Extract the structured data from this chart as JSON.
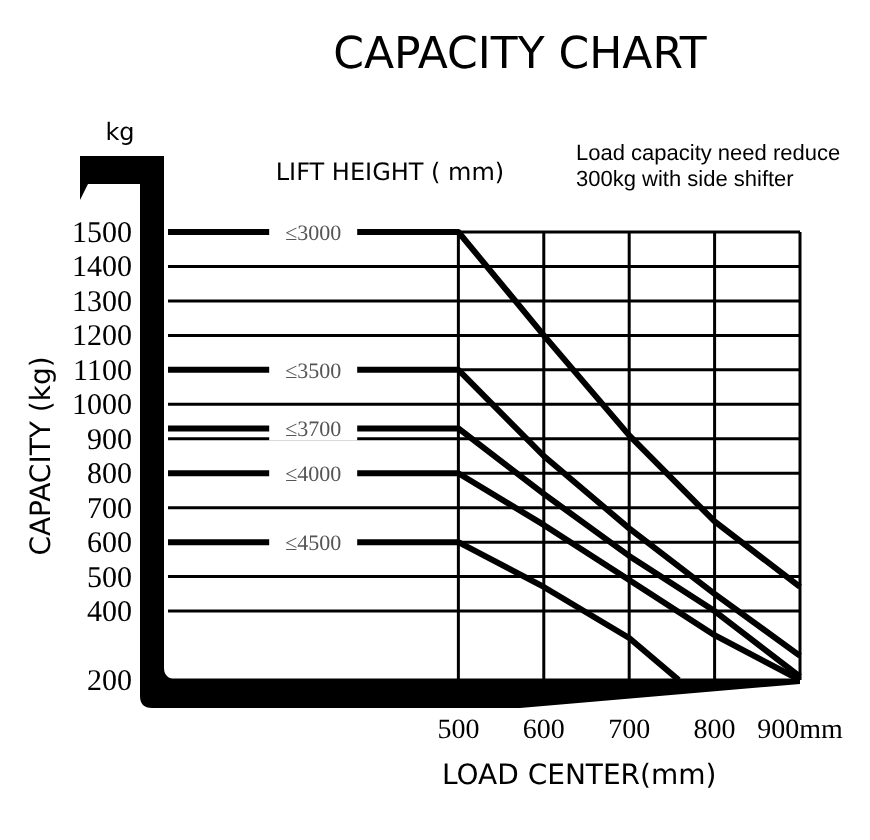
{
  "chart_data": {
    "type": "line",
    "title": "CAPACITY CHART",
    "xlabel": "LOAD CENTER(mm)",
    "ylabel": "CAPACITY (kg)",
    "legend_title": "LIFT HEIGHT ( mm)",
    "annotations": [
      "kg",
      "Load capacity need reduce\n300kg with side shifter"
    ],
    "xlim": [
      160,
      900
    ],
    "xticks": [
      500,
      600,
      700,
      800,
      {
        "value": 900,
        "label": "900mm"
      }
    ],
    "ylim": [
      200,
      1500
    ],
    "yticks": [
      200,
      400,
      500,
      600,
      700,
      800,
      900,
      1000,
      1100,
      1200,
      1300,
      1400,
      1500
    ],
    "grid": true,
    "marker": "none",
    "line_style": "solid",
    "series": [
      {
        "name": "≤3000",
        "color": "#000000",
        "x": [
          160,
          500,
          600,
          700,
          800,
          900
        ],
        "values": [
          1500,
          1500,
          1200,
          910,
          660,
          470
        ]
      },
      {
        "name": "≤3500",
        "color": "#000000",
        "x": [
          160,
          500,
          600,
          700,
          800,
          900
        ],
        "values": [
          1100,
          1100,
          850,
          640,
          450,
          270
        ]
      },
      {
        "name": "≤3700",
        "color": "#000000",
        "x": [
          160,
          500,
          600,
          700,
          800,
          900
        ],
        "values": [
          930,
          930,
          740,
          560,
          400,
          210
        ]
      },
      {
        "name": "≤4000",
        "color": "#000000",
        "x": [
          160,
          500,
          600,
          700,
          800,
          900
        ],
        "values": [
          800,
          800,
          650,
          490,
          330,
          200
        ]
      },
      {
        "name": "≤4500",
        "color": "#000000",
        "x": [
          160,
          500,
          600,
          700,
          758
        ],
        "values": [
          600,
          600,
          470,
          322,
          200
        ]
      }
    ]
  }
}
